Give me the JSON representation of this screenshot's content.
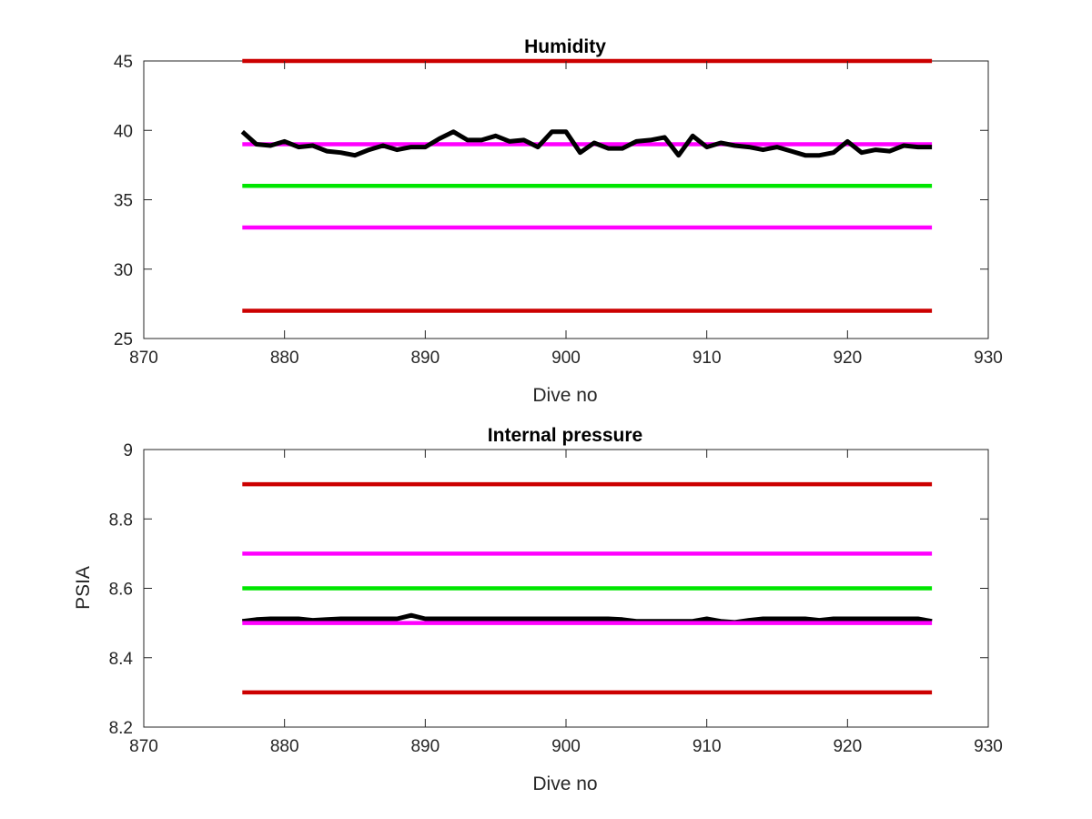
{
  "chart_data": [
    {
      "type": "line",
      "title": "Humidity",
      "xlabel": "Dive no",
      "ylabel": "",
      "xlim": [
        870,
        930
      ],
      "ylim": [
        25,
        45
      ],
      "xticks": [
        870,
        880,
        890,
        900,
        910,
        920,
        930
      ],
      "yticks": [
        25,
        30,
        35,
        40,
        45
      ],
      "xtick_labels": [
        "870",
        "880",
        "890",
        "900",
        "910",
        "920",
        "930"
      ],
      "ytick_labels": [
        "25",
        "30",
        "35",
        "40",
        "45"
      ],
      "grid": false,
      "series": [
        {
          "color": "#cc0000",
          "x": [
            877,
            926
          ],
          "y": [
            45,
            45
          ]
        },
        {
          "color": "#cc0000",
          "x": [
            877,
            926
          ],
          "y": [
            27,
            27
          ]
        },
        {
          "color": "#ff00ff",
          "x": [
            877,
            926
          ],
          "y": [
            33,
            33
          ]
        },
        {
          "color": "#00e600",
          "x": [
            877,
            926
          ],
          "y": [
            36,
            36
          ]
        },
        {
          "color": "#ff00ff",
          "x": [
            877,
            926
          ],
          "y": [
            39,
            39
          ]
        },
        {
          "color": "#000000",
          "x": [
            877,
            878,
            879,
            880,
            881,
            882,
            883,
            884,
            885,
            886,
            887,
            888,
            889,
            890,
            891,
            892,
            893,
            894,
            895,
            896,
            897,
            898,
            899,
            900,
            901,
            902,
            903,
            904,
            905,
            906,
            907,
            908,
            909,
            910,
            911,
            912,
            913,
            914,
            915,
            916,
            917,
            918,
            919,
            920,
            921,
            922,
            923,
            924,
            925,
            926
          ],
          "y": [
            39.9,
            39.0,
            38.9,
            39.2,
            38.8,
            38.9,
            38.5,
            38.4,
            38.2,
            38.6,
            38.9,
            38.6,
            38.8,
            38.8,
            39.4,
            39.9,
            39.3,
            39.3,
            39.6,
            39.2,
            39.3,
            38.8,
            39.9,
            39.9,
            38.4,
            39.1,
            38.7,
            38.7,
            39.2,
            39.3,
            39.5,
            38.2,
            39.6,
            38.8,
            39.1,
            38.9,
            38.8,
            38.6,
            38.8,
            38.5,
            38.2,
            38.2,
            38.4,
            39.2,
            38.4,
            38.6,
            38.5,
            38.9,
            38.8,
            38.8
          ]
        }
      ]
    },
    {
      "type": "line",
      "title": "Internal pressure",
      "xlabel": "Dive no",
      "ylabel": "PSIA",
      "xlim": [
        870,
        930
      ],
      "ylim": [
        8.2,
        9
      ],
      "xticks": [
        870,
        880,
        890,
        900,
        910,
        920,
        930
      ],
      "yticks": [
        8.2,
        8.4,
        8.6,
        8.8,
        9
      ],
      "xtick_labels": [
        "870",
        "880",
        "890",
        "900",
        "910",
        "920",
        "930"
      ],
      "ytick_labels": [
        "8.2",
        "8.4",
        "8.6",
        "8.8",
        "9"
      ],
      "grid": false,
      "series": [
        {
          "color": "#cc0000",
          "x": [
            877,
            926
          ],
          "y": [
            8.9,
            8.9
          ]
        },
        {
          "color": "#ff00ff",
          "x": [
            877,
            926
          ],
          "y": [
            8.7,
            8.7
          ]
        },
        {
          "color": "#00e600",
          "x": [
            877,
            926
          ],
          "y": [
            8.6,
            8.6
          ]
        },
        {
          "color": "#cc0000",
          "x": [
            877,
            926
          ],
          "y": [
            8.3,
            8.3
          ]
        },
        {
          "color": "#000000",
          "x": [
            877,
            878,
            879,
            880,
            881,
            882,
            883,
            884,
            885,
            886,
            887,
            888,
            889,
            890,
            891,
            892,
            893,
            894,
            895,
            896,
            897,
            898,
            899,
            900,
            901,
            902,
            903,
            904,
            905,
            906,
            907,
            908,
            909,
            910,
            911,
            912,
            913,
            914,
            915,
            916,
            917,
            918,
            919,
            920,
            921,
            922,
            923,
            924,
            925,
            926
          ],
          "y": [
            8.505,
            8.51,
            8.512,
            8.512,
            8.512,
            8.508,
            8.51,
            8.512,
            8.512,
            8.512,
            8.512,
            8.512,
            8.522,
            8.512,
            8.512,
            8.512,
            8.512,
            8.512,
            8.512,
            8.512,
            8.512,
            8.512,
            8.512,
            8.512,
            8.512,
            8.512,
            8.512,
            8.51,
            8.505,
            8.505,
            8.505,
            8.505,
            8.505,
            8.512,
            8.505,
            8.502,
            8.508,
            8.512,
            8.512,
            8.512,
            8.512,
            8.508,
            8.512,
            8.512,
            8.512,
            8.512,
            8.512,
            8.512,
            8.512,
            8.505
          ]
        },
        {
          "color": "#ff00ff",
          "x": [
            877,
            926
          ],
          "y": [
            8.5,
            8.5
          ]
        }
      ]
    }
  ]
}
